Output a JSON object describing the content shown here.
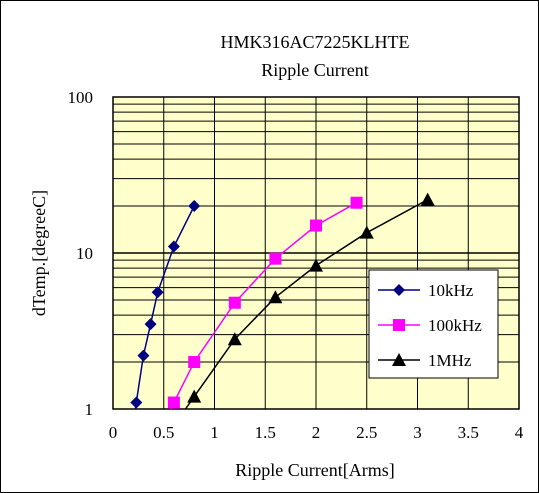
{
  "chart_data": {
    "type": "line",
    "title": "HMK316AC7225KLHTE",
    "subtitle": "Ripple Current",
    "xlabel": "Ripple Current[Arms]",
    "ylabel": "dTemp.[degreeC]",
    "xlim": [
      0,
      4
    ],
    "ylim": [
      1,
      100
    ],
    "yscale": "log",
    "grid": true,
    "background_color": "#ffffcc",
    "x_ticks": [
      "0",
      "0.5",
      "1",
      "1.5",
      "2",
      "2.5",
      "3",
      "3.5",
      "4"
    ],
    "x_tick_values": [
      0,
      0.5,
      1,
      1.5,
      2,
      2.5,
      3,
      3.5,
      4
    ],
    "y_ticks": [
      "1",
      "10",
      "100"
    ],
    "y_tick_values": [
      1,
      10,
      100
    ],
    "legend_position": "bottom-right",
    "series": [
      {
        "name": "10kHz",
        "color": "#000080",
        "marker": "diamond",
        "x": [
          0.23,
          0.3,
          0.37,
          0.44,
          0.6,
          0.8
        ],
        "y": [
          1.1,
          2.2,
          3.5,
          5.6,
          11,
          20
        ]
      },
      {
        "name": "100kHz",
        "color": "#ff00ff",
        "marker": "square",
        "x": [
          0.6,
          0.8,
          1.2,
          1.6,
          2.0,
          2.4
        ],
        "y": [
          1.1,
          2.0,
          4.8,
          9.2,
          15,
          21
        ]
      },
      {
        "name": "1MHz",
        "color": "#000000",
        "marker": "triangle",
        "x": [
          0.8,
          1.2,
          1.6,
          2.0,
          2.5,
          3.1
        ],
        "y": [
          1.2,
          2.8,
          5.2,
          8.3,
          13.5,
          22
        ]
      }
    ]
  }
}
